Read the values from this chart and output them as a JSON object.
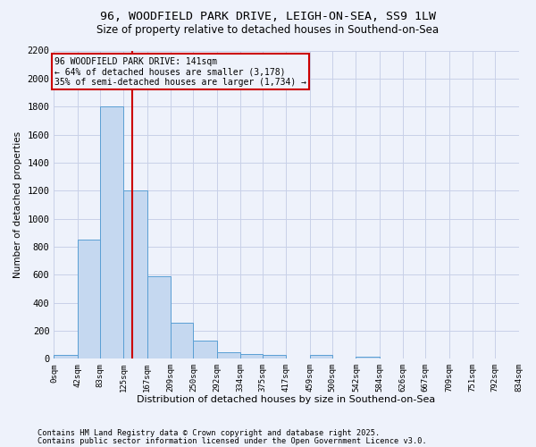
{
  "title1": "96, WOODFIELD PARK DRIVE, LEIGH-ON-SEA, SS9 1LW",
  "title2": "Size of property relative to detached houses in Southend-on-Sea",
  "xlabel": "Distribution of detached houses by size in Southend-on-Sea",
  "ylabel": "Number of detached properties",
  "bin_edges": [
    0,
    42,
    83,
    125,
    167,
    209,
    250,
    292,
    334,
    375,
    417,
    459,
    500,
    542,
    584,
    626,
    667,
    709,
    751,
    792,
    834
  ],
  "bin_counts": [
    25,
    850,
    1800,
    1200,
    590,
    255,
    130,
    45,
    35,
    25,
    0,
    25,
    0,
    15,
    0,
    0,
    0,
    0,
    0,
    0
  ],
  "bar_color": "#c5d8f0",
  "bar_edge_color": "#5a9fd4",
  "vline_x": 141,
  "vline_color": "#cc0000",
  "ylim": [
    0,
    2200
  ],
  "yticks": [
    0,
    200,
    400,
    600,
    800,
    1000,
    1200,
    1400,
    1600,
    1800,
    2000,
    2200
  ],
  "annotation_text": "96 WOODFIELD PARK DRIVE: 141sqm\n← 64% of detached houses are smaller (3,178)\n35% of semi-detached houses are larger (1,734) →",
  "bg_color": "#eef2fb",
  "grid_color": "#c8d0e8",
  "footer1": "Contains HM Land Registry data © Crown copyright and database right 2025.",
  "footer2": "Contains public sector information licensed under the Open Government Licence v3.0.",
  "tick_labels": [
    "0sqm",
    "42sqm",
    "83sqm",
    "125sqm",
    "167sqm",
    "209sqm",
    "250sqm",
    "292sqm",
    "334sqm",
    "375sqm",
    "417sqm",
    "459sqm",
    "500sqm",
    "542sqm",
    "584sqm",
    "626sqm",
    "667sqm",
    "709sqm",
    "751sqm",
    "792sqm",
    "834sqm"
  ]
}
